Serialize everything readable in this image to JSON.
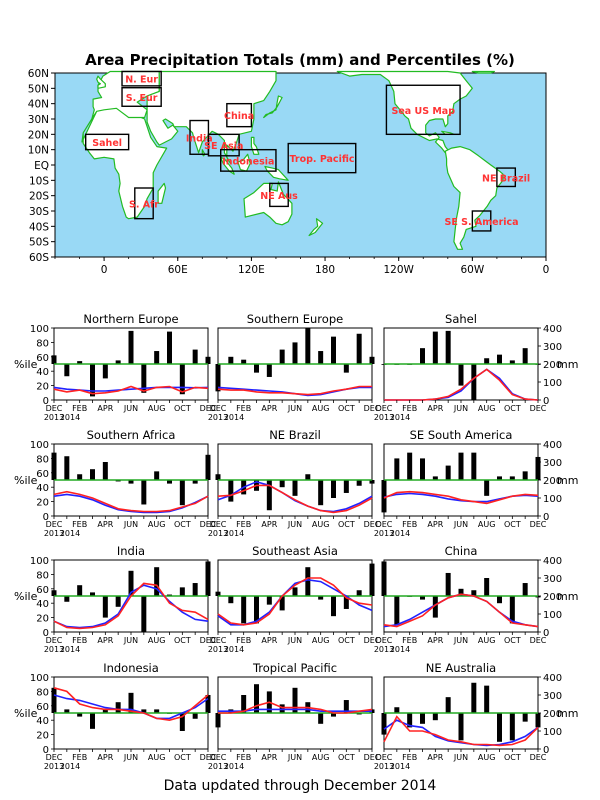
{
  "title": "Area Precipitation Totals (mm) and Percentiles (%)",
  "footer": "Data updated through December 2014",
  "colors": {
    "ocean": "#99d9f5",
    "coast": "#22bb22",
    "land": "#ffffff",
    "region_text": "#ff3333",
    "obs_line": "#ff2222",
    "clim_line": "#2222ff",
    "median_line": "#22aa22",
    "bar": "#000000"
  },
  "map": {
    "lat_labels": [
      "60N",
      "50N",
      "40N",
      "30N",
      "20N",
      "10N",
      "EQ",
      "10S",
      "20S",
      "30S",
      "40S",
      "50S",
      "60S"
    ],
    "lon_labels": [
      "0",
      "60E",
      "120E",
      "180",
      "120W",
      "60W",
      "0"
    ],
    "regions": [
      {
        "label": "N. Eur",
        "x0": 14.6,
        "x1": 46.5,
        "y0": 51.6,
        "y1": 61.0
      },
      {
        "label": "S. Eur",
        "x0": 14.6,
        "x1": 46.5,
        "y0": 38.3,
        "y1": 50.4
      },
      {
        "label": "Sahel",
        "x0": -15,
        "x1": 20,
        "y0": 10,
        "y1": 20
      },
      {
        "label": "S. Afr",
        "x0": 25,
        "x1": 40,
        "y0": -35,
        "y1": -15
      },
      {
        "label": "India",
        "x0": 70,
        "x1": 85,
        "y0": 7,
        "y1": 29
      },
      {
        "label": "SE Asia",
        "x0": 85,
        "x1": 110,
        "y0": 6,
        "y1": 20
      },
      {
        "label": "China",
        "x0": 100,
        "x1": 120,
        "y0": 25,
        "y1": 40
      },
      {
        "label": "Indonesia",
        "x0": 95,
        "x1": 140,
        "y0": -4,
        "y1": 10
      },
      {
        "label": "NE Aus",
        "x0": 135,
        "x1": 150,
        "y0": -27,
        "y1": -12
      },
      {
        "label": "Trop. Pacific",
        "x0": 150,
        "x1": 205,
        "y0": -5,
        "y1": 14
      },
      {
        "label": "Sea US Map",
        "x0": 230,
        "x1": 290,
        "y0": 20,
        "y1": 52
      },
      {
        "label": "NE Brazil",
        "x0": 320,
        "x1": 335,
        "y0": -14,
        "y1": -2
      },
      {
        "label": "SE S. America",
        "x0": 300,
        "x1": 315,
        "y0": -43,
        "y1": -30
      }
    ]
  },
  "panel_axes": {
    "y_left_ticks": [
      "0",
      "20",
      "40",
      "60",
      "80",
      "100"
    ],
    "y_left_label": "%ile",
    "y_right_ticks": [
      "0",
      "100",
      "200",
      "300",
      "400"
    ],
    "y_right_label": "mm",
    "x_ticks": [
      "DEC",
      "FEB",
      "APR",
      "JUN",
      "AUG",
      "OCT",
      "DEC"
    ],
    "year_label": "2013",
    "year_label2": "2014"
  },
  "chart_data": [
    {
      "type": "bar",
      "title": "Northern Europe",
      "x": [
        "DEC",
        "JAN",
        "FEB",
        "MAR",
        "APR",
        "MAY",
        "JUN",
        "JUL",
        "AUG",
        "SEP",
        "OCT",
        "NOV",
        "DEC"
      ],
      "percentiles": [
        62,
        33,
        54,
        5,
        30,
        55,
        96,
        10,
        68,
        95,
        8,
        70,
        60
      ],
      "obs_mm": [
        60,
        45,
        55,
        35,
        40,
        50,
        75,
        50,
        70,
        75,
        45,
        70,
        65
      ],
      "clim_mm": [
        70,
        60,
        55,
        50,
        50,
        55,
        60,
        65,
        70,
        70,
        70,
        68,
        70
      ],
      "ylim": [
        0,
        100
      ],
      "ylim_right": [
        0,
        400
      ]
    },
    {
      "type": "bar",
      "title": "Southern Europe",
      "x": [
        "DEC",
        "JAN",
        "FEB",
        "MAR",
        "APR",
        "MAY",
        "JUN",
        "JUL",
        "AUG",
        "SEP",
        "OCT",
        "NOV",
        "DEC"
      ],
      "percentiles": [
        12,
        60,
        56,
        38,
        32,
        70,
        80,
        100,
        68,
        88,
        38,
        92,
        60
      ],
      "obs_mm": [
        60,
        55,
        55,
        45,
        40,
        40,
        35,
        30,
        35,
        50,
        60,
        75,
        75
      ],
      "clim_mm": [
        70,
        65,
        60,
        55,
        50,
        45,
        35,
        25,
        30,
        45,
        60,
        70,
        70
      ],
      "ylim": [
        0,
        100
      ],
      "ylim_right": [
        0,
        400
      ]
    },
    {
      "type": "bar",
      "title": "Sahel",
      "x": [
        "DEC",
        "JAN",
        "FEB",
        "MAR",
        "APR",
        "MAY",
        "JUN",
        "JUL",
        "AUG",
        "SEP",
        "OCT",
        "NOV",
        "DEC"
      ],
      "percentiles": [
        50,
        50,
        50,
        72,
        95,
        96,
        20,
        0,
        58,
        63,
        55,
        72,
        50
      ],
      "obs_mm": [
        0,
        0,
        0,
        0,
        5,
        20,
        60,
        120,
        170,
        110,
        30,
        5,
        0
      ],
      "clim_mm": [
        0,
        0,
        0,
        0,
        5,
        15,
        50,
        120,
        170,
        120,
        35,
        5,
        0
      ],
      "ylim": [
        0,
        100
      ],
      "ylim_right": [
        0,
        400
      ]
    },
    {
      "type": "bar",
      "title": "Southern Africa",
      "x": [
        "DEC",
        "JAN",
        "FEB",
        "MAR",
        "APR",
        "MAY",
        "JUN",
        "JUL",
        "AUG",
        "SEP",
        "OCT",
        "NOV",
        "DEC"
      ],
      "percentiles": [
        88,
        83,
        58,
        65,
        75,
        48,
        45,
        16,
        62,
        45,
        15,
        45,
        85
      ],
      "obs_mm": [
        120,
        135,
        120,
        100,
        70,
        40,
        30,
        25,
        25,
        30,
        50,
        70,
        110
      ],
      "clim_mm": [
        110,
        120,
        110,
        90,
        60,
        35,
        25,
        20,
        20,
        25,
        45,
        75,
        110
      ],
      "ylim": [
        0,
        100
      ],
      "ylim_right": [
        0,
        400
      ]
    },
    {
      "type": "bar",
      "title": "NE Brazil",
      "x": [
        "DEC",
        "JAN",
        "FEB",
        "MAR",
        "APR",
        "MAY",
        "JUN",
        "JUL",
        "AUG",
        "SEP",
        "OCT",
        "NOV",
        "DEC"
      ],
      "percentiles": [
        58,
        20,
        30,
        35,
        8,
        40,
        28,
        58,
        15,
        25,
        32,
        42,
        45
      ],
      "obs_mm": [
        110,
        115,
        140,
        170,
        170,
        130,
        90,
        55,
        30,
        20,
        30,
        60,
        100
      ],
      "clim_mm": [
        90,
        115,
        160,
        190,
        170,
        130,
        85,
        55,
        30,
        25,
        40,
        70,
        110
      ],
      "ylim": [
        0,
        100
      ],
      "ylim_right": [
        0,
        400
      ]
    },
    {
      "type": "bar",
      "title": "SE South America",
      "x": [
        "DEC",
        "JAN",
        "FEB",
        "MAR",
        "APR",
        "MAY",
        "JUN",
        "JUL",
        "AUG",
        "SEP",
        "OCT",
        "NOV",
        "DEC"
      ],
      "percentiles": [
        5,
        80,
        88,
        80,
        55,
        70,
        88,
        88,
        28,
        55,
        55,
        62,
        82
      ],
      "obs_mm": [
        100,
        130,
        135,
        130,
        120,
        110,
        90,
        80,
        70,
        90,
        110,
        120,
        115
      ],
      "clim_mm": [
        105,
        120,
        125,
        120,
        110,
        95,
        85,
        80,
        80,
        95,
        110,
        115,
        110
      ],
      "ylim": [
        0,
        100
      ],
      "ylim_right": [
        0,
        400
      ]
    },
    {
      "type": "bar",
      "title": "India",
      "x": [
        "DEC",
        "JAN",
        "FEB",
        "MAR",
        "APR",
        "MAY",
        "JUN",
        "JUL",
        "AUG",
        "SEP",
        "OCT",
        "NOV",
        "DEC"
      ],
      "percentiles": [
        58,
        42,
        65,
        55,
        20,
        35,
        85,
        0,
        90,
        52,
        62,
        68,
        98
      ],
      "obs_mm": [
        60,
        25,
        20,
        25,
        40,
        90,
        200,
        270,
        260,
        160,
        120,
        110,
        70
      ],
      "clim_mm": [
        60,
        30,
        25,
        30,
        50,
        100,
        220,
        260,
        240,
        170,
        110,
        70,
        60
      ],
      "ylim": [
        0,
        100
      ],
      "ylim_right": [
        0,
        400
      ]
    },
    {
      "type": "bar",
      "title": "Southeast Asia",
      "x": [
        "DEC",
        "JAN",
        "FEB",
        "MAR",
        "APR",
        "MAY",
        "JUN",
        "JUL",
        "AUG",
        "SEP",
        "OCT",
        "NOV",
        "DEC"
      ],
      "percentiles": [
        56,
        40,
        12,
        12,
        38,
        30,
        62,
        90,
        45,
        22,
        32,
        58,
        95
      ],
      "obs_mm": [
        100,
        50,
        40,
        50,
        100,
        200,
        260,
        300,
        300,
        260,
        190,
        160,
        150
      ],
      "clim_mm": [
        90,
        40,
        40,
        60,
        110,
        200,
        270,
        290,
        280,
        240,
        200,
        150,
        120
      ],
      "ylim": [
        0,
        100
      ],
      "ylim_right": [
        0,
        400
      ]
    },
    {
      "type": "bar",
      "title": "China",
      "x": [
        "DEC",
        "JAN",
        "FEB",
        "MAR",
        "APR",
        "MAY",
        "JUN",
        "JUL",
        "AUG",
        "SEP",
        "OCT",
        "NOV",
        "DEC"
      ],
      "percentiles": [
        98,
        10,
        50,
        45,
        20,
        82,
        60,
        58,
        75,
        40,
        12,
        68,
        48
      ],
      "obs_mm": [
        40,
        30,
        60,
        90,
        150,
        190,
        210,
        200,
        170,
        110,
        50,
        40,
        30
      ],
      "clim_mm": [
        30,
        40,
        70,
        110,
        150,
        190,
        210,
        200,
        170,
        110,
        60,
        40,
        30
      ],
      "ylim": [
        0,
        100
      ],
      "ylim_right": [
        0,
        400
      ]
    },
    {
      "type": "bar",
      "title": "Indonesia",
      "x": [
        "DEC",
        "JAN",
        "FEB",
        "MAR",
        "APR",
        "MAY",
        "JUN",
        "JUL",
        "AUG",
        "SEP",
        "OCT",
        "NOV",
        "DEC"
      ],
      "percentiles": [
        85,
        55,
        45,
        28,
        55,
        65,
        78,
        55,
        55,
        50,
        25,
        42,
        75
      ],
      "obs_mm": [
        340,
        320,
        250,
        230,
        220,
        220,
        210,
        200,
        170,
        160,
        180,
        240,
        300
      ],
      "clim_mm": [
        300,
        280,
        270,
        250,
        230,
        220,
        220,
        200,
        170,
        170,
        200,
        230,
        280
      ],
      "ylim": [
        0,
        100
      ],
      "ylim_right": [
        0,
        400
      ]
    },
    {
      "type": "bar",
      "title": "Tropical Pacific",
      "x": [
        "DEC",
        "JAN",
        "FEB",
        "MAR",
        "APR",
        "MAY",
        "JUN",
        "JUL",
        "AUG",
        "SEP",
        "OCT",
        "NOV",
        "DEC"
      ],
      "percentiles": [
        30,
        55,
        75,
        90,
        80,
        62,
        85,
        65,
        35,
        45,
        68,
        48,
        55
      ],
      "obs_mm": [
        200,
        200,
        210,
        240,
        260,
        230,
        230,
        230,
        220,
        200,
        200,
        210,
        220
      ],
      "clim_mm": [
        210,
        210,
        210,
        220,
        220,
        220,
        220,
        220,
        210,
        210,
        210,
        210,
        210
      ],
      "ylim": [
        0,
        100
      ],
      "ylim_right": [
        0,
        400
      ]
    },
    {
      "type": "bar",
      "title": "NE Australia",
      "x": [
        "DEC",
        "JAN",
        "FEB",
        "MAR",
        "APR",
        "MAY",
        "JUN",
        "JUL",
        "AUG",
        "SEP",
        "OCT",
        "NOV",
        "DEC"
      ],
      "percentiles": [
        20,
        58,
        30,
        35,
        40,
        72,
        12,
        92,
        88,
        10,
        12,
        38,
        30
      ],
      "obs_mm": [
        40,
        180,
        100,
        100,
        80,
        50,
        40,
        25,
        25,
        20,
        25,
        50,
        120
      ],
      "clim_mm": [
        110,
        160,
        130,
        120,
        70,
        45,
        35,
        25,
        20,
        25,
        40,
        70,
        120
      ],
      "ylim": [
        0,
        100
      ],
      "ylim_right": [
        0,
        400
      ]
    }
  ]
}
